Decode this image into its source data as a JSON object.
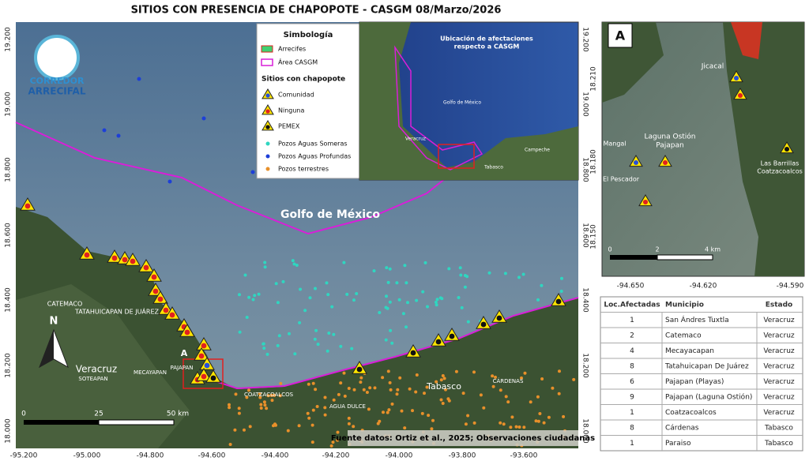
{
  "title": "SITIOS CON PRESENCIA DE CHAPOPOTE - CASGM 08/Marzo/2026",
  "main_map": {
    "lat_ticks_left": [
      "19.200",
      "19.000",
      "18.800",
      "18.600",
      "18.400",
      "18.200",
      "18.000"
    ],
    "lat_ticks_right": [
      "19.200",
      "19.000",
      "18.800",
      "18.600",
      "18.400",
      "18.200",
      "18.000"
    ],
    "lon_ticks": [
      "-95.200",
      "-95.000",
      "-94.800",
      "-94.600",
      "-94.400",
      "-94.200",
      "-94.000",
      "-93.800",
      "-93.600"
    ],
    "logo": [
      "CORREDOR",
      "ARRECIFAL"
    ],
    "labels": {
      "gulf": "Golfo de México",
      "veracruz": "Veracruz",
      "tabasco": "Tabasco",
      "catemaco": "CATEMACO",
      "tatahuicapan": "TATAHUICAPAN DE JUÁREZ",
      "soteapan": "SOTEAPAN",
      "mecayapan": "MECAYAPAN",
      "pajapan": "PAJAPAN",
      "coatzacoalcos": "COATZACOALCOS",
      "agua_dulce": "AGUA DULCE",
      "cardenas": "CÁRDENAS",
      "north": "N",
      "box": "A"
    },
    "scale": [
      "0",
      "25",
      "50 km"
    ],
    "source": "Fuente datos: Ortiz et al., 2025; Observaciones ciudadanas"
  },
  "legend": {
    "title": "Simbología",
    "reefs": "Arrecifes",
    "area": "Área CASGM",
    "sites_title": "Sitios con chapopote",
    "community": "Comunidad",
    "none": "Ninguna",
    "pemex": "PEMEX",
    "shallow": "Pozos Aguas Someras",
    "deep": "Pozos Aguas Profundas",
    "land": "Pozos terrestres"
  },
  "inset": {
    "title": [
      "Ubicación de afectaciones",
      "respecto a CASGM"
    ],
    "gulf": "Golfo de México",
    "veracruz": "Veracruz",
    "tabasco": "Tabasco",
    "campeche": "Campeche"
  },
  "detail": {
    "letter": "A",
    "jicacal": "Jicacal",
    "laguna": [
      "Laguna Ostión",
      "Pajapan"
    ],
    "mangal": "Mangal",
    "pescador": "El Pescador",
    "barrillas": [
      "Las Barrillas",
      "Coatzacoalcos"
    ],
    "scale": [
      "0",
      "2",
      "4 km"
    ],
    "lon_ticks": [
      "-94.650",
      "-94.620",
      "-94.590"
    ],
    "lat_ticks": [
      "18.210",
      "18.180",
      "18.150"
    ]
  },
  "table": {
    "header": [
      "Loc.Afectadas",
      "Municipio",
      "Estado"
    ],
    "rows": [
      [
        1,
        "San Ándres Tuxtla",
        "Veracruz"
      ],
      [
        2,
        "Catemaco",
        "Veracruz"
      ],
      [
        4,
        "Mecayacapan",
        "Veracruz"
      ],
      [
        8,
        "Tatahuicapan De Juárez",
        "Veracruz"
      ],
      [
        6,
        "Pajapan (Playas)",
        "Veracruz"
      ],
      [
        9,
        "Pajapan (Laguna Ostión)",
        "Veracruz"
      ],
      [
        1,
        "Coatzacoalcos",
        "Veracruz"
      ],
      [
        8,
        "Cárdenas",
        "Tabasco"
      ],
      [
        1,
        "Paraiso",
        "Tabasco"
      ]
    ]
  }
}
